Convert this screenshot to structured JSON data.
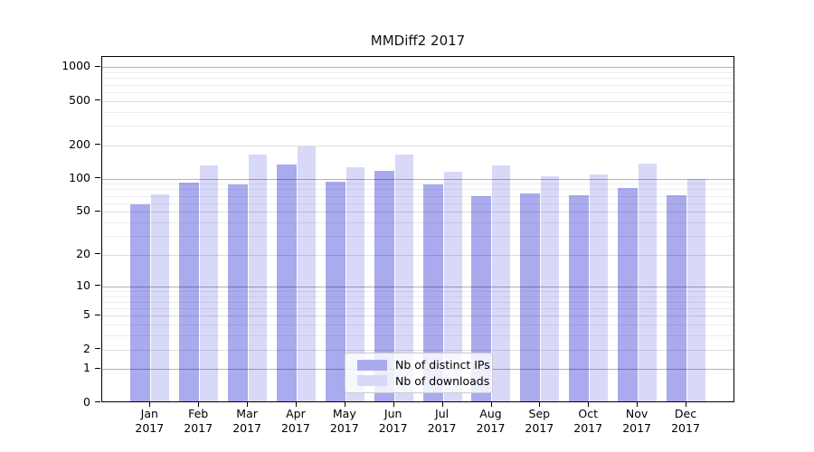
{
  "title": "MMDiff2 2017",
  "legend": {
    "items": [
      {
        "label": "Nb of distinct IPs",
        "color": "#aaaaee"
      },
      {
        "label": "Nb of downloads",
        "color": "#d8d8f8"
      }
    ]
  },
  "chart_data": {
    "type": "bar",
    "title": "MMDiff2 2017",
    "categories": [
      "Jan",
      "Feb",
      "Mar",
      "Apr",
      "May",
      "Jun",
      "Jul",
      "Aug",
      "Sep",
      "Oct",
      "Nov",
      "Dec"
    ],
    "x_year_line": "2017",
    "series": [
      {
        "name": "Nb of distinct IPs",
        "color": "#aaaaee",
        "values": [
          56,
          88,
          85,
          128,
          91,
          113,
          85,
          67,
          71,
          68,
          79,
          68
        ]
      },
      {
        "name": "Nb of downloads",
        "color": "#d8d8f8",
        "values": [
          70,
          126,
          159,
          189,
          122,
          159,
          112,
          127,
          101,
          104,
          132,
          95
        ]
      }
    ],
    "xlabel": "",
    "ylabel": "",
    "yscale": "log1p",
    "yticks": [
      0,
      1,
      2,
      5,
      10,
      20,
      50,
      100,
      200,
      500,
      1000
    ],
    "ylim": [
      0,
      1236
    ],
    "grid": true,
    "legend_position": "lower center",
    "colors": {
      "major_gridline": "rgba(0,0,0,0.30)",
      "mid_gridline": "rgba(0,0,0,0.13)",
      "minor_gridline": "rgba(0,0,0,0.07)"
    }
  }
}
